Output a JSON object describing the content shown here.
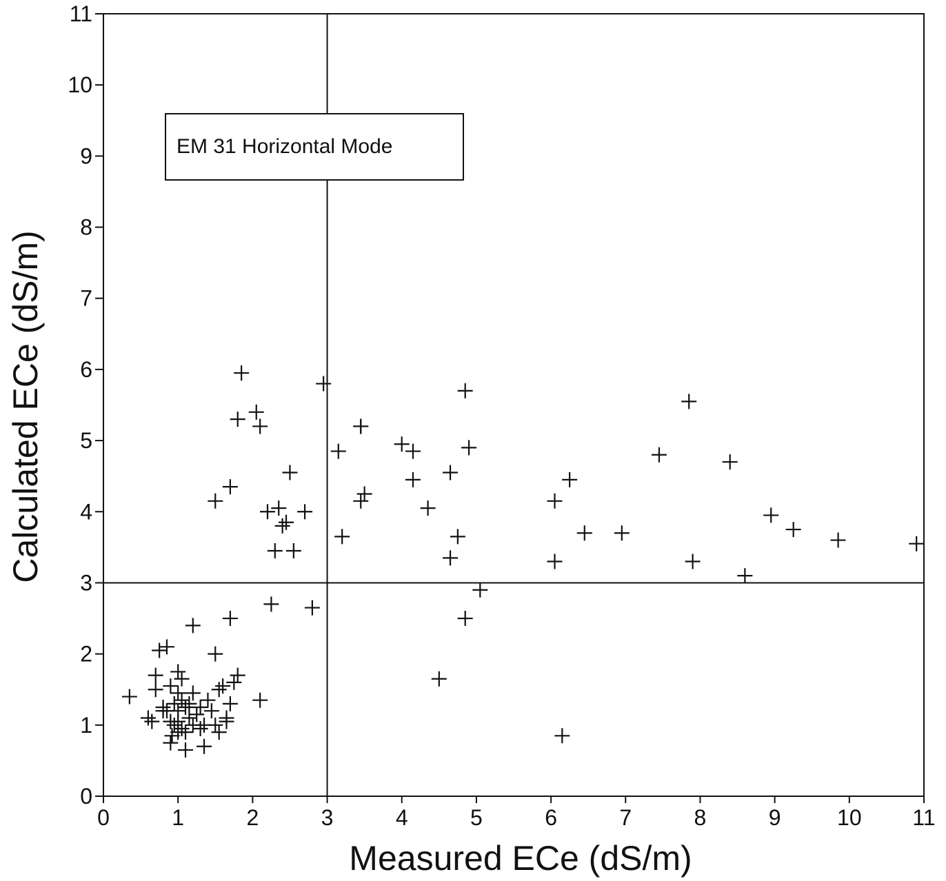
{
  "chart_data": {
    "type": "scatter",
    "xlabel": "Measured ECe (dS/m)",
    "ylabel": "Calculated ECe (dS/m)",
    "annotation": "EM 31 Horizontal Mode",
    "xlim": [
      0,
      11
    ],
    "ylim": [
      0,
      11
    ],
    "xticks": [
      "0",
      "1",
      "2",
      "3",
      "4",
      "5",
      "6",
      "7",
      "8",
      "9",
      "10",
      "11"
    ],
    "yticks": [
      "0",
      "1",
      "2",
      "3",
      "4",
      "5",
      "6",
      "7",
      "8",
      "9",
      "10",
      "11"
    ],
    "grid": false,
    "reference_lines": {
      "x": 3,
      "y": 3
    },
    "marker": "plus",
    "points": [
      [
        0.35,
        1.4
      ],
      [
        0.6,
        1.1
      ],
      [
        0.65,
        1.05
      ],
      [
        0.7,
        1.5
      ],
      [
        0.7,
        1.7
      ],
      [
        0.75,
        2.05
      ],
      [
        0.8,
        1.25
      ],
      [
        0.85,
        1.2
      ],
      [
        0.85,
        2.1
      ],
      [
        0.9,
        1.05
      ],
      [
        0.9,
        0.75
      ],
      [
        0.92,
        0.85
      ],
      [
        0.95,
        1.3
      ],
      [
        0.95,
        1.0
      ],
      [
        1.0,
        1.75
      ],
      [
        1.0,
        1.45
      ],
      [
        1.0,
        1.2
      ],
      [
        1.0,
        1.05
      ],
      [
        1.05,
        1.35
      ],
      [
        1.05,
        1.65
      ],
      [
        1.05,
        0.95
      ],
      [
        1.1,
        0.9
      ],
      [
        1.1,
        0.65
      ],
      [
        1.1,
        1.25
      ],
      [
        1.15,
        1.1
      ],
      [
        1.15,
        1.3
      ],
      [
        1.2,
        1.45
      ],
      [
        1.2,
        1.0
      ],
      [
        1.2,
        2.4
      ],
      [
        1.25,
        1.15
      ],
      [
        1.3,
        1.25
      ],
      [
        1.3,
        0.95
      ],
      [
        1.35,
        1.0
      ],
      [
        1.35,
        0.7
      ],
      [
        1.4,
        1.35
      ],
      [
        1.45,
        1.2
      ],
      [
        1.5,
        1.0
      ],
      [
        1.5,
        2.0
      ],
      [
        1.55,
        1.5
      ],
      [
        1.55,
        0.9
      ],
      [
        1.6,
        1.55
      ],
      [
        1.65,
        1.1
      ],
      [
        1.65,
        1.05
      ],
      [
        1.7,
        1.3
      ],
      [
        1.75,
        1.6
      ],
      [
        1.8,
        1.7
      ],
      [
        1.7,
        2.5
      ],
      [
        0.9,
        1.55
      ],
      [
        0.8,
        1.2
      ],
      [
        1.0,
        0.9
      ],
      [
        2.1,
        1.35
      ],
      [
        1.5,
        4.15
      ],
      [
        1.7,
        4.35
      ],
      [
        1.8,
        5.3
      ],
      [
        1.85,
        5.95
      ],
      [
        2.05,
        5.4
      ],
      [
        2.1,
        5.2
      ],
      [
        2.2,
        4.0
      ],
      [
        2.25,
        2.7
      ],
      [
        2.3,
        3.45
      ],
      [
        2.35,
        4.05
      ],
      [
        2.4,
        3.8
      ],
      [
        2.45,
        3.85
      ],
      [
        2.5,
        4.55
      ],
      [
        2.55,
        3.45
      ],
      [
        2.7,
        4.0
      ],
      [
        2.8,
        2.65
      ],
      [
        2.95,
        5.8
      ],
      [
        3.15,
        4.85
      ],
      [
        3.2,
        3.65
      ],
      [
        3.45,
        5.2
      ],
      [
        3.45,
        4.15
      ],
      [
        3.5,
        4.25
      ],
      [
        3.45,
        5.2
      ],
      [
        4.0,
        4.95
      ],
      [
        4.15,
        4.85
      ],
      [
        4.15,
        4.45
      ],
      [
        4.35,
        4.05
      ],
      [
        4.5,
        1.65
      ],
      [
        4.65,
        4.55
      ],
      [
        4.65,
        3.35
      ],
      [
        4.75,
        3.65
      ],
      [
        4.85,
        5.7
      ],
      [
        4.9,
        4.9
      ],
      [
        4.85,
        2.5
      ],
      [
        5.05,
        2.9
      ],
      [
        6.05,
        4.15
      ],
      [
        6.05,
        3.3
      ],
      [
        6.15,
        0.85
      ],
      [
        6.25,
        4.45
      ],
      [
        6.45,
        3.7
      ],
      [
        6.95,
        3.7
      ],
      [
        7.45,
        4.8
      ],
      [
        7.85,
        5.55
      ],
      [
        7.9,
        3.3
      ],
      [
        8.4,
        4.7
      ],
      [
        8.6,
        3.1
      ],
      [
        8.95,
        3.95
      ],
      [
        9.25,
        3.75
      ],
      [
        9.85,
        3.6
      ],
      [
        10.9,
        3.55
      ]
    ]
  }
}
